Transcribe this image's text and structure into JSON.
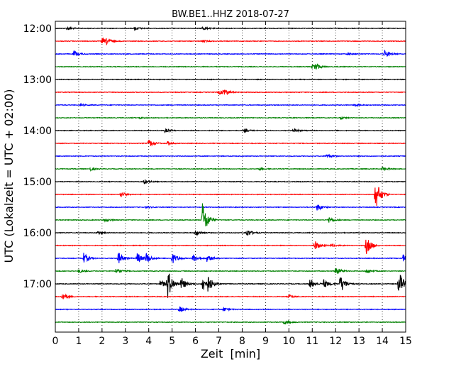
{
  "chart_data": {
    "type": "line",
    "title": "BW.BE1..HHZ 2018-07-27",
    "xlabel": "Zeit  [min]",
    "ylabel": "UTC (Lokalzeit = UTC + 02:00)",
    "xlim": [
      0,
      15
    ],
    "x_ticks": [
      "0",
      "1",
      "2",
      "3",
      "4",
      "5",
      "6",
      "7",
      "8",
      "9",
      "10",
      "11",
      "12",
      "13",
      "14",
      "15"
    ],
    "y_ticks": [
      {
        "label": "12:00",
        "row": 0
      },
      {
        "label": "13:00",
        "row": 4
      },
      {
        "label": "14:00",
        "row": 8
      },
      {
        "label": "15:00",
        "row": 12
      },
      {
        "label": "16:00",
        "row": 16
      },
      {
        "label": "17:00",
        "row": 20
      }
    ],
    "grid": "vertical dotted lines at every minute",
    "trace_colors": [
      "#000000",
      "#ff0000",
      "#0000ff",
      "#008000"
    ],
    "rows": 24,
    "minutes_per_row": 15,
    "events": [
      {
        "row": 0,
        "t": 0.5,
        "a": 0.25
      },
      {
        "row": 0,
        "t": 3.4,
        "a": 0.3
      },
      {
        "row": 0,
        "t": 6.3,
        "a": 0.25
      },
      {
        "row": 1,
        "t": 2.0,
        "a": 0.5
      },
      {
        "row": 1,
        "t": 2.2,
        "a": 0.4
      },
      {
        "row": 1,
        "t": 6.3,
        "a": 0.2
      },
      {
        "row": 2,
        "t": 0.8,
        "a": 0.5
      },
      {
        "row": 2,
        "t": 14.1,
        "a": 0.6
      },
      {
        "row": 2,
        "t": 12.5,
        "a": 0.15
      },
      {
        "row": 3,
        "t": 11.1,
        "a": 0.6
      },
      {
        "row": 3,
        "t": 11.0,
        "a": 0.3
      },
      {
        "row": 5,
        "t": 7.2,
        "a": 0.6
      },
      {
        "row": 5,
        "t": 7.0,
        "a": 0.35
      },
      {
        "row": 6,
        "t": 1.1,
        "a": 0.2
      },
      {
        "row": 6,
        "t": 12.8,
        "a": 0.2
      },
      {
        "row": 7,
        "t": 3.6,
        "a": 0.15
      },
      {
        "row": 7,
        "t": 12.2,
        "a": 0.2
      },
      {
        "row": 8,
        "t": 4.7,
        "a": 0.3
      },
      {
        "row": 8,
        "t": 8.1,
        "a": 0.25
      },
      {
        "row": 8,
        "t": 10.2,
        "a": 0.35
      },
      {
        "row": 9,
        "t": 4.0,
        "a": 0.6
      },
      {
        "row": 9,
        "t": 4.8,
        "a": 0.3
      },
      {
        "row": 10,
        "t": 11.6,
        "a": 0.3
      },
      {
        "row": 11,
        "t": 1.5,
        "a": 0.3
      },
      {
        "row": 11,
        "t": 14.0,
        "a": 0.3
      },
      {
        "row": 11,
        "t": 8.7,
        "a": 0.2
      },
      {
        "row": 12,
        "t": 3.8,
        "a": 0.4
      },
      {
        "row": 13,
        "t": 2.8,
        "a": 0.5
      },
      {
        "row": 13,
        "t": 13.7,
        "a": 2.6
      },
      {
        "row": 14,
        "t": 11.2,
        "a": 0.6
      },
      {
        "row": 14,
        "t": 3.9,
        "a": 0.15
      },
      {
        "row": 15,
        "t": 2.1,
        "a": 0.3
      },
      {
        "row": 15,
        "t": 6.3,
        "a": 3.0
      },
      {
        "row": 15,
        "t": 11.7,
        "a": 0.5
      },
      {
        "row": 16,
        "t": 1.8,
        "a": 0.3
      },
      {
        "row": 16,
        "t": 6.0,
        "a": 0.5
      },
      {
        "row": 16,
        "t": 8.2,
        "a": 0.6
      },
      {
        "row": 17,
        "t": 11.1,
        "a": 0.8
      },
      {
        "row": 17,
        "t": 13.3,
        "a": 1.5
      },
      {
        "row": 17,
        "t": 11.8,
        "a": 0.3
      },
      {
        "row": 18,
        "t": 1.2,
        "a": 0.9
      },
      {
        "row": 18,
        "t": 2.7,
        "a": 1.0
      },
      {
        "row": 18,
        "t": 3.5,
        "a": 0.9
      },
      {
        "row": 18,
        "t": 3.9,
        "a": 0.8
      },
      {
        "row": 18,
        "t": 5.0,
        "a": 0.9
      },
      {
        "row": 18,
        "t": 5.9,
        "a": 0.6
      },
      {
        "row": 18,
        "t": 6.5,
        "a": 0.6
      },
      {
        "row": 18,
        "t": 14.9,
        "a": 0.7
      },
      {
        "row": 19,
        "t": 1.0,
        "a": 0.3
      },
      {
        "row": 19,
        "t": 2.6,
        "a": 0.5
      },
      {
        "row": 19,
        "t": 12.0,
        "a": 0.7
      },
      {
        "row": 19,
        "t": 13.3,
        "a": 0.35
      },
      {
        "row": 20,
        "t": 4.5,
        "a": 0.6
      },
      {
        "row": 20,
        "t": 4.8,
        "a": 2.5
      },
      {
        "row": 20,
        "t": 5.4,
        "a": 1.0
      },
      {
        "row": 20,
        "t": 6.3,
        "a": 1.3
      },
      {
        "row": 20,
        "t": 6.5,
        "a": 1.2
      },
      {
        "row": 20,
        "t": 10.9,
        "a": 0.8
      },
      {
        "row": 20,
        "t": 11.5,
        "a": 0.7
      },
      {
        "row": 20,
        "t": 12.2,
        "a": 1.5
      },
      {
        "row": 20,
        "t": 14.7,
        "a": 2.0
      },
      {
        "row": 21,
        "t": 0.3,
        "a": 0.6
      },
      {
        "row": 21,
        "t": 10.0,
        "a": 0.3
      },
      {
        "row": 22,
        "t": 5.3,
        "a": 0.5
      },
      {
        "row": 22,
        "t": 7.2,
        "a": 0.3
      },
      {
        "row": 23,
        "t": 9.8,
        "a": 0.4
      }
    ]
  }
}
